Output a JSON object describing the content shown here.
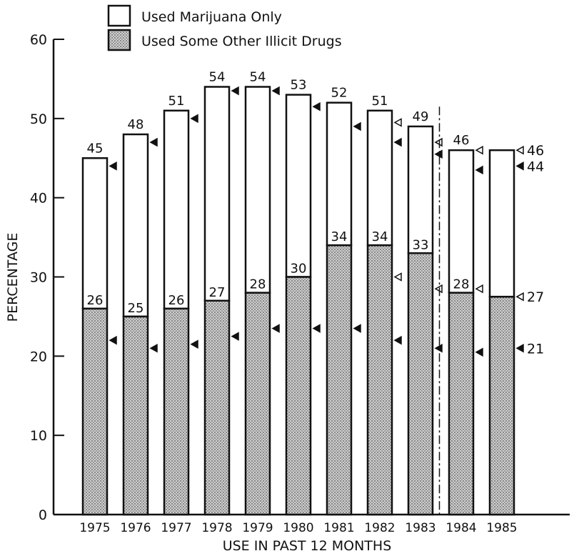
{
  "chart_data": {
    "type": "bar",
    "title": "",
    "xlabel": "USE IN PAST 12 MONTHS",
    "ylabel": "PERCENTAGE",
    "ylim": [
      0,
      60
    ],
    "yticks": [
      "0",
      "10",
      "20",
      "30",
      "40",
      "50",
      "60"
    ],
    "grid": false,
    "legend_position": "top-left",
    "stacked": true,
    "categories": [
      "1975",
      "1976",
      "1977",
      "1978",
      "1979",
      "1980",
      "1981",
      "1982",
      "1983",
      "1984",
      "1985"
    ],
    "series": [
      {
        "name": "Used Some Other Illicit Drugs",
        "pattern": "dotted-gray",
        "values": [
          26,
          25,
          26,
          27,
          28,
          30,
          34,
          34,
          33,
          28,
          27.5
        ],
        "labels": [
          "26",
          "25",
          "26",
          "27",
          "28",
          "30",
          "34",
          "34",
          "33",
          "28",
          ""
        ]
      },
      {
        "name": "Used Marijuana Only",
        "pattern": "white",
        "totals": [
          45,
          48,
          51,
          54,
          54,
          53,
          52,
          51,
          49,
          46,
          46
        ],
        "total_labels": [
          "45",
          "48",
          "51",
          "54",
          "54",
          "53",
          "52",
          "51",
          "49",
          "46",
          ""
        ]
      }
    ],
    "right_side_labels": {
      "total_1985": "46",
      "other_1985": "27",
      "marker_total_1985": "44",
      "marker_other_1985": "21"
    },
    "filled_markers": [
      {
        "category": "1975",
        "values": [
          44,
          22
        ]
      },
      {
        "category": "1976",
        "values": [
          47,
          21
        ]
      },
      {
        "category": "1977",
        "values": [
          50,
          21.5
        ]
      },
      {
        "category": "1978",
        "values": [
          53.5,
          22.5
        ]
      },
      {
        "category": "1979",
        "values": [
          53.5,
          23.5
        ]
      },
      {
        "category": "1980",
        "values": [
          51.5,
          23.5
        ]
      },
      {
        "category": "1981",
        "values": [
          49,
          23.5
        ]
      },
      {
        "category": "1982",
        "values": [
          47,
          22
        ]
      },
      {
        "category": "1983",
        "values": [
          45.5,
          21
        ]
      },
      {
        "category": "1984",
        "values": [
          43.5,
          20.5
        ]
      },
      {
        "category": "1985",
        "values": [
          44,
          21
        ]
      }
    ],
    "hollow_markers": [
      {
        "category": "1982",
        "values": [
          49.5,
          30
        ]
      },
      {
        "category": "1983",
        "values": [
          47,
          28.5
        ]
      },
      {
        "category": "1984",
        "values": [
          46,
          28.5
        ]
      },
      {
        "category": "1985",
        "values": [
          46,
          27.5
        ]
      }
    ],
    "divider_after_category": "1983"
  },
  "colors": {
    "ink": "#111111",
    "bar_fill_other": "#b8b8b8",
    "bar_fill_marijuana": "#ffffff"
  }
}
